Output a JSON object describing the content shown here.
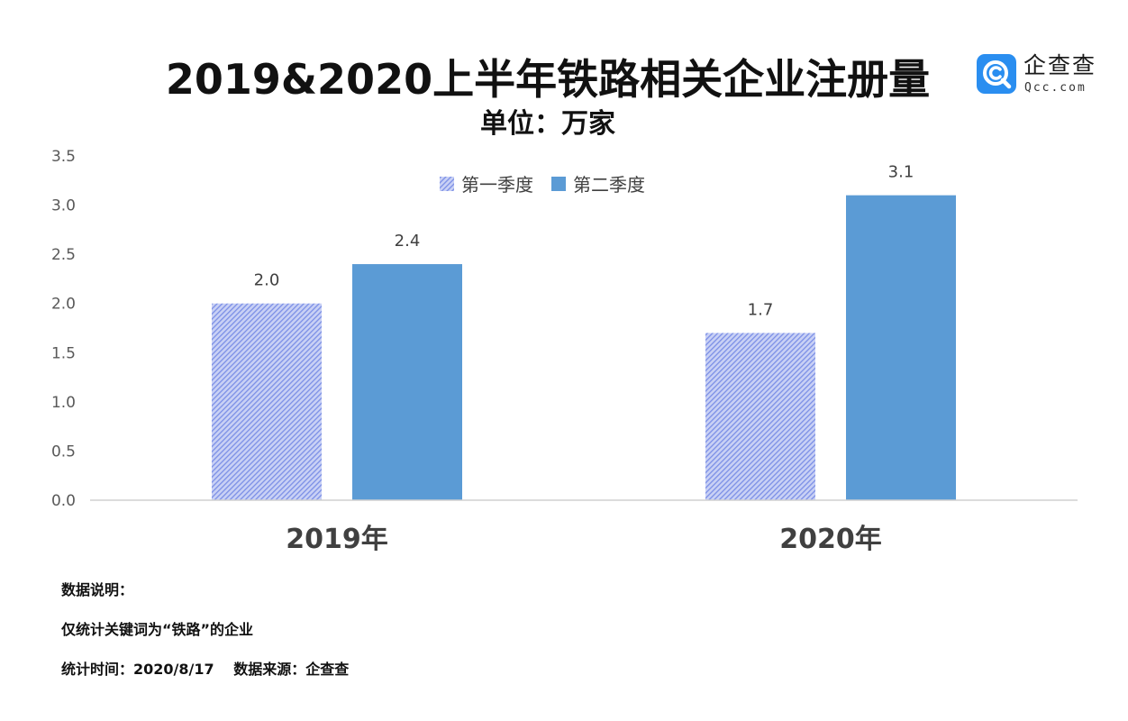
{
  "header": {
    "title": "2019&2020上半年铁路相关企业注册量",
    "subtitle": "单位：万家"
  },
  "logo": {
    "name": "企查查",
    "domain": "Qcc.com",
    "icon": "qcc-logo-icon",
    "color": "#2a8ef0"
  },
  "chart_data": {
    "type": "bar",
    "title": "2019&2020上半年铁路相关企业注册量",
    "subtitle": "单位：万家",
    "categories": [
      "2019年",
      "2020年"
    ],
    "series": [
      {
        "name": "第一季度",
        "values": [
          2.0,
          1.7
        ],
        "labels": [
          "2.0",
          "1.7"
        ],
        "color": "#7b8fe6",
        "pattern": "diagonal-hatch"
      },
      {
        "name": "第二季度",
        "values": [
          2.4,
          3.1
        ],
        "labels": [
          "2.4",
          "3.1"
        ],
        "color": "#5b9bd5",
        "pattern": "solid"
      }
    ],
    "ylim": [
      0,
      3.5
    ],
    "yticks": [
      "0.0",
      "0.5",
      "1.0",
      "1.5",
      "2.0",
      "2.5",
      "3.0",
      "3.5"
    ],
    "grid": false,
    "legend_position": "top-center"
  },
  "notes": {
    "heading": "数据说明：",
    "line1": "仅统计关键词为“铁路”的企业",
    "line2": "统计时间：2020/8/17　 数据来源：企查查"
  }
}
